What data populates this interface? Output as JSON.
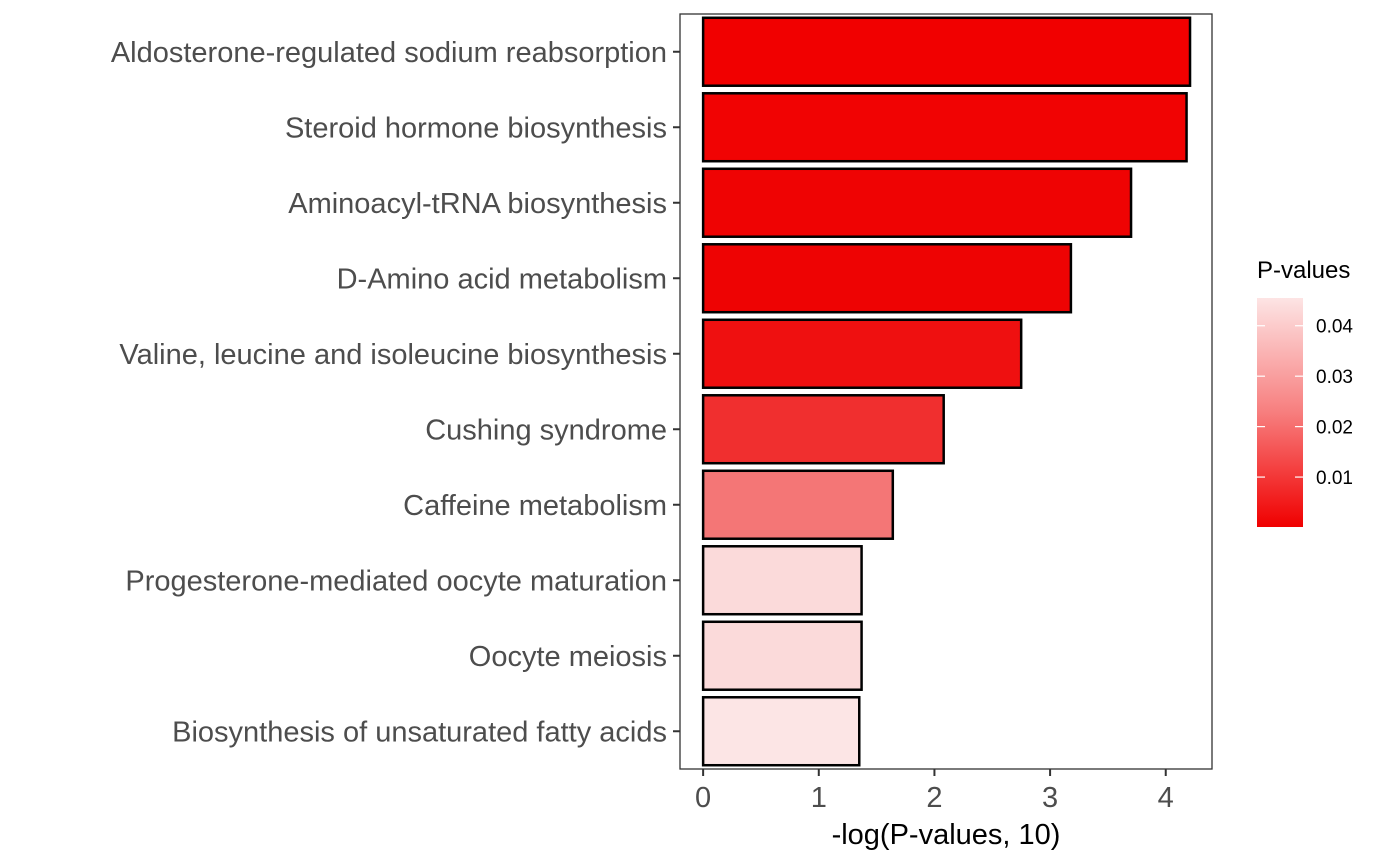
{
  "chart_data": {
    "type": "bar",
    "orientation": "horizontal",
    "categories": [
      "Aldosterone-regulated sodium reabsorption",
      "Steroid hormone biosynthesis",
      "Aminoacyl-tRNA biosynthesis",
      "D-Amino acid metabolism",
      "Valine, leucine and isoleucine biosynthesis",
      "Cushing syndrome",
      "Caffeine metabolism",
      "Progesterone-mediated oocyte maturation",
      "Oocyte meiosis",
      "Biosynthesis of unsaturated fatty acids"
    ],
    "values": [
      4.21,
      4.18,
      3.7,
      3.18,
      2.75,
      2.08,
      1.64,
      1.37,
      1.37,
      1.35
    ],
    "colors": [
      "#f10000",
      "#f10303",
      "#ef0303",
      "#ee0303",
      "#ef1010",
      "#f02f2f",
      "#f47676",
      "#fbdada",
      "#fbdada",
      "#fce5e5"
    ],
    "xlabel": "-log(P-values, 10)",
    "ylabel": "",
    "xlim": [
      -0.2,
      4.4
    ],
    "xticks": [
      "0",
      "1",
      "2",
      "3",
      "4"
    ],
    "legend": {
      "title": "P-values",
      "position": "right",
      "type": "colorbar",
      "low_color": "#f00000",
      "high_color": "#fde4e4",
      "range": [
        0.0001,
        0.0455
      ],
      "ticks": [
        "0.01",
        "0.02",
        "0.03",
        "0.04"
      ]
    }
  }
}
